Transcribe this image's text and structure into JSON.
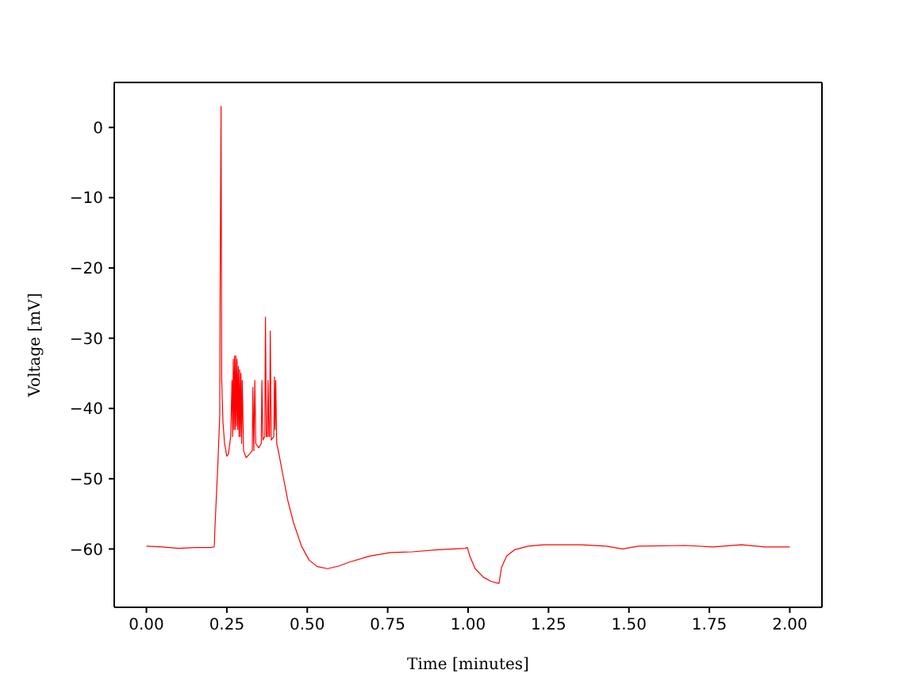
{
  "chart_data": {
    "type": "line",
    "xlabel": "Time [minutes]",
    "ylabel": "Voltage [mV]",
    "x": [
      0,
      0.05,
      0.1,
      0.15,
      0.2,
      0.211,
      0.213,
      0.222,
      0.228,
      0.229,
      0.232,
      0.234,
      0.238,
      0.243,
      0.25,
      0.255,
      0.262,
      0.266,
      0.268,
      0.27,
      0.272,
      0.274,
      0.276,
      0.278,
      0.28,
      0.282,
      0.284,
      0.286,
      0.288,
      0.29,
      0.292,
      0.294,
      0.296,
      0.298,
      0.302,
      0.31,
      0.32,
      0.329,
      0.331,
      0.334,
      0.337,
      0.34,
      0.349,
      0.357,
      0.359,
      0.362,
      0.368,
      0.37,
      0.373,
      0.376,
      0.378,
      0.381,
      0.383,
      0.385,
      0.388,
      0.396,
      0.398,
      0.4,
      0.402,
      0.405,
      0.41,
      0.424,
      0.44,
      0.457,
      0.482,
      0.506,
      0.531,
      0.563,
      0.6,
      0.629,
      0.694,
      0.76,
      0.826,
      0.907,
      0.99,
      0.998,
      1.005,
      1.022,
      1.047,
      1.071,
      1.096,
      1.104,
      1.12,
      1.145,
      1.186,
      1.235,
      1.35,
      1.43,
      1.48,
      1.53,
      1.677,
      1.76,
      1.85,
      1.923,
      2.0
    ],
    "values": [
      -59.6,
      -59.7,
      -59.9,
      -59.8,
      -59.8,
      -59.7,
      -57,
      -48,
      -41,
      -24,
      3.0,
      -36,
      -42,
      -45,
      -46.8,
      -46.5,
      -44,
      -36,
      -44,
      -33,
      -43,
      -32.5,
      -43,
      -32.5,
      -42.5,
      -33,
      -43,
      -34,
      -44,
      -34.5,
      -44,
      -35,
      -45,
      -36,
      -46,
      -47,
      -46.5,
      -46,
      -37,
      -46,
      -36,
      -45,
      -45.6,
      -45,
      -36,
      -44.5,
      -44,
      -27,
      -44,
      -44,
      -36,
      -44,
      -44,
      -29,
      -44.5,
      -44,
      -35.5,
      -43,
      -36,
      -45,
      -46,
      -49.4,
      -53.2,
      -56.2,
      -59.6,
      -61.6,
      -62.5,
      -62.8,
      -62.4,
      -61.9,
      -61.0,
      -60.5,
      -60.4,
      -60.1,
      -59.9,
      -59.8,
      -61.0,
      -62.8,
      -64.0,
      -64.6,
      -64.9,
      -62.6,
      -61.0,
      -60.1,
      -59.6,
      -59.4,
      -59.4,
      -59.6,
      -60.0,
      -59.6,
      -59.5,
      -59.7,
      -59.4,
      -59.7,
      -59.7
    ],
    "color": "#ff0000",
    "xlim": [
      -0.1,
      2.1
    ],
    "ylim": [
      -68.3,
      6.4
    ],
    "xticks": [
      {
        "value": 0,
        "label": "0.00"
      },
      {
        "value": 0.25,
        "label": "0.25"
      },
      {
        "value": 0.5,
        "label": "0.50"
      },
      {
        "value": 0.75,
        "label": "0.75"
      },
      {
        "value": 1,
        "label": "1.00"
      },
      {
        "value": 1.25,
        "label": "1.25"
      },
      {
        "value": 1.5,
        "label": "1.50"
      },
      {
        "value": 1.75,
        "label": "1.75"
      },
      {
        "value": 2,
        "label": "2.00"
      }
    ],
    "yticks": [
      0,
      {
        "value": -10,
        "label": "−10"
      },
      {
        "value": -20,
        "label": "−20"
      },
      {
        "value": -30,
        "label": "−30"
      },
      {
        "value": -40,
        "label": "−40"
      },
      {
        "value": -50,
        "label": "−50"
      },
      {
        "value": -60,
        "label": "−60"
      }
    ]
  }
}
